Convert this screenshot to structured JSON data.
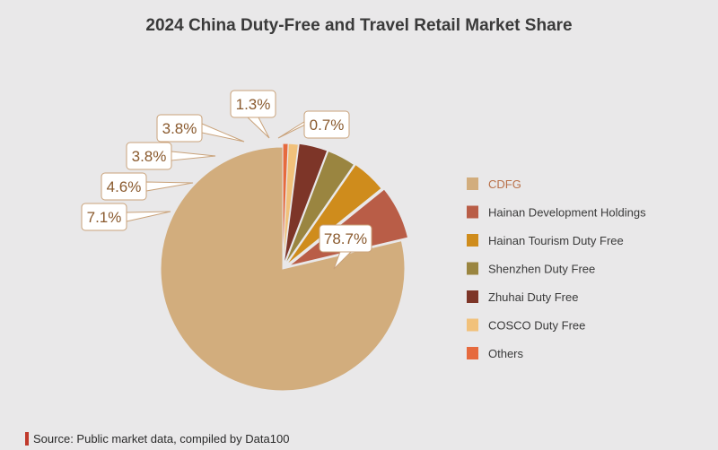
{
  "chart_data": {
    "type": "pie",
    "title": "2024 China Duty-Free and Travel Retail Market Share",
    "unit": "%",
    "categories": [
      "CDFG",
      "Hainan Development Holdings",
      "Hainan Tourism Duty Free",
      "Shenzhen Duty Free",
      "Zhuhai Duty Free",
      "COSCO Duty Free",
      "Others"
    ],
    "values": [
      78.7,
      7.1,
      4.6,
      3.8,
      3.8,
      1.3,
      0.7
    ],
    "labels": [
      "78.7%",
      "7.1%",
      "4.6%",
      "3.8%",
      "3.8%",
      "1.3%",
      "0.7%"
    ],
    "colors": [
      "#d2ad7d",
      "#b95d47",
      "#cf8c1c",
      "#9a8540",
      "#7d3528",
      "#f1c17b",
      "#e66a3e"
    ],
    "legend_position": "right",
    "highlighted": "CDFG"
  },
  "source": {
    "text": "Source: Public market data, compiled by Data100"
  }
}
